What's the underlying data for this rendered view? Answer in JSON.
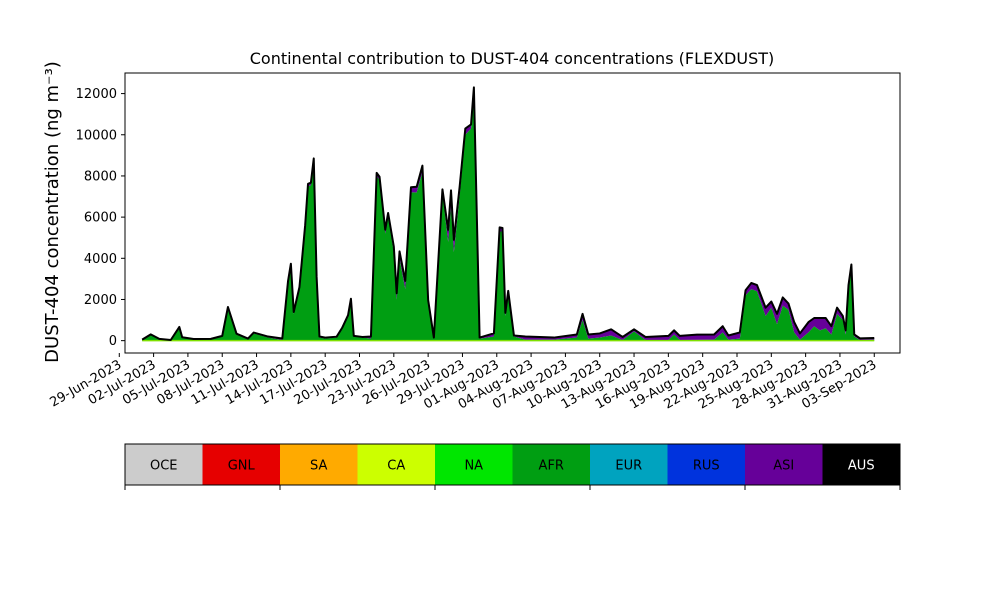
{
  "chart_data": {
    "type": "area",
    "stacked": true,
    "title": "Continental contribution to DUST-404 concentrations (FLEXDUST)",
    "ylabel": "DUST-404 concentration (ng m⁻³)",
    "xlabel": "",
    "ylim": [
      -600,
      13000
    ],
    "xlim": [
      "2023-06-29T12:00",
      "2023-09-05T06:00"
    ],
    "yticks": [
      0,
      2000,
      4000,
      6000,
      8000,
      10000,
      12000
    ],
    "xticks": [
      "29-Jun-2023",
      "02-Jul-2023",
      "05-Jul-2023",
      "08-Jul-2023",
      "11-Jul-2023",
      "14-Jul-2023",
      "17-Jul-2023",
      "20-Jul-2023",
      "23-Jul-2023",
      "26-Jul-2023",
      "29-Jul-2023",
      "01-Aug-2023",
      "04-Aug-2023",
      "07-Aug-2023",
      "10-Aug-2023",
      "13-Aug-2023",
      "16-Aug-2023",
      "19-Aug-2023",
      "22-Aug-2023",
      "25-Aug-2023",
      "28-Aug-2023",
      "31-Aug-2023",
      "03-Sep-2023"
    ],
    "grid": false,
    "legend": {
      "placement": "bottom colorbar",
      "entries": [
        {
          "name": "OCE",
          "color": "#cccccc"
        },
        {
          "name": "GNL",
          "color": "#e60000"
        },
        {
          "name": "SA",
          "color": "#ffaa00"
        },
        {
          "name": "CA",
          "color": "#ccff00"
        },
        {
          "name": "NA",
          "color": "#00e600"
        },
        {
          "name": "AFR",
          "color": "#009e12"
        },
        {
          "name": "EUR",
          "color": "#00a3bf"
        },
        {
          "name": "RUS",
          "color": "#0033dd"
        },
        {
          "name": "ASI",
          "color": "#660099"
        },
        {
          "name": "AUS",
          "color": "#000000"
        }
      ]
    },
    "series": [
      {
        "name": "AFR",
        "color": "#009e12",
        "points": [
          [
            "2023-07-01T00:00",
            50
          ],
          [
            "2023-07-01T18:00",
            300
          ],
          [
            "2023-07-02T12:00",
            80
          ],
          [
            "2023-07-03T12:00",
            20
          ],
          [
            "2023-07-04T06:00",
            650
          ],
          [
            "2023-07-04T12:00",
            150
          ],
          [
            "2023-07-05T12:00",
            60
          ],
          [
            "2023-07-07T00:00",
            60
          ],
          [
            "2023-07-08T00:00",
            200
          ],
          [
            "2023-07-08T12:00",
            1600
          ],
          [
            "2023-07-09T06:00",
            300
          ],
          [
            "2023-07-10T06:00",
            60
          ],
          [
            "2023-07-10T18:00",
            350
          ],
          [
            "2023-07-12T00:00",
            150
          ],
          [
            "2023-07-13T06:00",
            30
          ],
          [
            "2023-07-13T18:00",
            2800
          ],
          [
            "2023-07-14T00:00",
            3650
          ],
          [
            "2023-07-14T06:00",
            1300
          ],
          [
            "2023-07-14T18:00",
            2500
          ],
          [
            "2023-07-15T06:00",
            5500
          ],
          [
            "2023-07-15T12:00",
            7500
          ],
          [
            "2023-07-15T18:00",
            7550
          ],
          [
            "2023-07-16T00:00",
            8700
          ],
          [
            "2023-07-16T06:00",
            3000
          ],
          [
            "2023-07-16T12:00",
            150
          ],
          [
            "2023-07-17T00:00",
            100
          ],
          [
            "2023-07-18T00:00",
            150
          ],
          [
            "2023-07-18T12:00",
            600
          ],
          [
            "2023-07-19T00:00",
            1200
          ],
          [
            "2023-07-19T06:00",
            2000
          ],
          [
            "2023-07-19T12:00",
            200
          ],
          [
            "2023-07-20T06:00",
            150
          ],
          [
            "2023-07-21T00:00",
            100
          ],
          [
            "2023-07-21T12:00",
            8000
          ],
          [
            "2023-07-21T18:00",
            7800
          ],
          [
            "2023-07-22T06:00",
            5200
          ],
          [
            "2023-07-22T12:00",
            6000
          ],
          [
            "2023-07-23T00:00",
            4300
          ],
          [
            "2023-07-23T06:00",
            2000
          ],
          [
            "2023-07-23T12:00",
            4000
          ],
          [
            "2023-07-24T00:00",
            2500
          ],
          [
            "2023-07-24T12:00",
            7200
          ],
          [
            "2023-07-25T00:00",
            7200
          ],
          [
            "2023-07-25T12:00",
            8200
          ],
          [
            "2023-07-26T00:00",
            1800
          ],
          [
            "2023-07-26T12:00",
            100
          ],
          [
            "2023-07-27T06:00",
            7200
          ],
          [
            "2023-07-27T18:00",
            4800
          ],
          [
            "2023-07-28T00:00",
            6500
          ],
          [
            "2023-07-28T06:00",
            4300
          ],
          [
            "2023-07-28T18:00",
            7000
          ],
          [
            "2023-07-29T06:00",
            10000
          ],
          [
            "2023-07-29T18:00",
            10300
          ],
          [
            "2023-07-30T00:00",
            12000
          ],
          [
            "2023-07-30T12:00",
            100
          ],
          [
            "2023-07-31T18:00",
            200
          ],
          [
            "2023-08-01T06:00",
            5300
          ],
          [
            "2023-08-01T12:00",
            5300
          ],
          [
            "2023-08-01T18:00",
            1200
          ],
          [
            "2023-08-02T00:00",
            2300
          ],
          [
            "2023-08-02T12:00",
            200
          ],
          [
            "2023-08-03T12:00",
            50
          ],
          [
            "2023-08-06T00:00",
            50
          ],
          [
            "2023-08-08T00:00",
            150
          ],
          [
            "2023-08-08T12:00",
            1000
          ],
          [
            "2023-08-09T00:00",
            100
          ],
          [
            "2023-08-10T00:00",
            150
          ],
          [
            "2023-08-11T00:00",
            250
          ],
          [
            "2023-08-12T00:00",
            30
          ],
          [
            "2023-08-13T00:00",
            450
          ],
          [
            "2023-08-14T00:00",
            30
          ],
          [
            "2023-08-16T00:00",
            30
          ],
          [
            "2023-08-16T12:00",
            300
          ],
          [
            "2023-08-17T00:00",
            30
          ],
          [
            "2023-08-20T00:00",
            50
          ],
          [
            "2023-08-20T18:00",
            400
          ],
          [
            "2023-08-21T06:00",
            50
          ],
          [
            "2023-08-22T06:00",
            100
          ],
          [
            "2023-08-22T18:00",
            2200
          ],
          [
            "2023-08-23T06:00",
            2500
          ],
          [
            "2023-08-23T18:00",
            2400
          ],
          [
            "2023-08-24T12:00",
            1200
          ],
          [
            "2023-08-25T00:00",
            1600
          ],
          [
            "2023-08-25T12:00",
            800
          ],
          [
            "2023-08-26T00:00",
            1700
          ],
          [
            "2023-08-26T12:00",
            1500
          ],
          [
            "2023-08-27T00:00",
            400
          ],
          [
            "2023-08-27T12:00",
            50
          ],
          [
            "2023-08-28T06:00",
            400
          ],
          [
            "2023-08-28T18:00",
            700
          ],
          [
            "2023-08-29T06:00",
            500
          ],
          [
            "2023-08-29T18:00",
            600
          ],
          [
            "2023-08-30T06:00",
            300
          ],
          [
            "2023-08-30T18:00",
            1300
          ],
          [
            "2023-08-31T06:00",
            1000
          ],
          [
            "2023-08-31T12:00",
            300
          ],
          [
            "2023-08-31T18:00",
            2500
          ],
          [
            "2023-09-01T00:00",
            3400
          ],
          [
            "2023-09-01T06:00",
            200
          ],
          [
            "2023-09-01T18:00",
            30
          ],
          [
            "2023-09-03T00:00",
            50
          ]
        ]
      },
      {
        "name": "ASI",
        "color": "#660099",
        "points": [
          [
            "2023-07-01T00:00",
            0
          ],
          [
            "2023-07-12T00:00",
            50
          ],
          [
            "2023-07-15T18:00",
            120
          ],
          [
            "2023-07-16T00:00",
            150
          ],
          [
            "2023-07-16T12:00",
            50
          ],
          [
            "2023-07-20T06:00",
            30
          ],
          [
            "2023-07-21T12:00",
            150
          ],
          [
            "2023-07-22T12:00",
            200
          ],
          [
            "2023-07-23T06:00",
            300
          ],
          [
            "2023-07-24T00:00",
            400
          ],
          [
            "2023-07-24T12:00",
            250
          ],
          [
            "2023-07-25T12:00",
            300
          ],
          [
            "2023-07-26T12:00",
            50
          ],
          [
            "2023-07-27T06:00",
            150
          ],
          [
            "2023-07-28T00:00",
            800
          ],
          [
            "2023-07-28T06:00",
            600
          ],
          [
            "2023-07-29T06:00",
            300
          ],
          [
            "2023-07-29T18:00",
            200
          ],
          [
            "2023-07-30T00:00",
            300
          ],
          [
            "2023-07-30T12:00",
            50
          ],
          [
            "2023-08-01T06:00",
            200
          ],
          [
            "2023-08-01T18:00",
            150
          ],
          [
            "2023-08-02T12:00",
            50
          ],
          [
            "2023-08-03T12:00",
            150
          ],
          [
            "2023-08-06T00:00",
            100
          ],
          [
            "2023-08-08T00:00",
            150
          ],
          [
            "2023-08-08T12:00",
            300
          ],
          [
            "2023-08-09T00:00",
            200
          ],
          [
            "2023-08-10T00:00",
            200
          ],
          [
            "2023-08-11T00:00",
            300
          ],
          [
            "2023-08-12T00:00",
            150
          ],
          [
            "2023-08-13T00:00",
            100
          ],
          [
            "2023-08-14T00:00",
            150
          ],
          [
            "2023-08-16T00:00",
            200
          ],
          [
            "2023-08-17T00:00",
            200
          ],
          [
            "2023-08-18T12:00",
            250
          ],
          [
            "2023-08-20T00:00",
            250
          ],
          [
            "2023-08-20T18:00",
            300
          ],
          [
            "2023-08-21T06:00",
            200
          ],
          [
            "2023-08-22T06:00",
            300
          ],
          [
            "2023-08-22T18:00",
            250
          ],
          [
            "2023-08-23T06:00",
            300
          ],
          [
            "2023-08-23T18:00",
            300
          ],
          [
            "2023-08-24T12:00",
            400
          ],
          [
            "2023-08-25T00:00",
            300
          ],
          [
            "2023-08-25T12:00",
            500
          ],
          [
            "2023-08-26T00:00",
            400
          ],
          [
            "2023-08-26T12:00",
            300
          ],
          [
            "2023-08-27T00:00",
            500
          ],
          [
            "2023-08-27T12:00",
            300
          ],
          [
            "2023-08-28T06:00",
            500
          ],
          [
            "2023-08-28T18:00",
            400
          ],
          [
            "2023-08-29T06:00",
            600
          ],
          [
            "2023-08-29T18:00",
            500
          ],
          [
            "2023-08-30T06:00",
            400
          ],
          [
            "2023-08-30T18:00",
            300
          ],
          [
            "2023-08-31T06:00",
            200
          ],
          [
            "2023-08-31T18:00",
            200
          ],
          [
            "2023-09-01T00:00",
            300
          ],
          [
            "2023-09-01T06:00",
            100
          ],
          [
            "2023-09-01T18:00",
            80
          ],
          [
            "2023-09-03T00:00",
            80
          ]
        ]
      }
    ]
  }
}
